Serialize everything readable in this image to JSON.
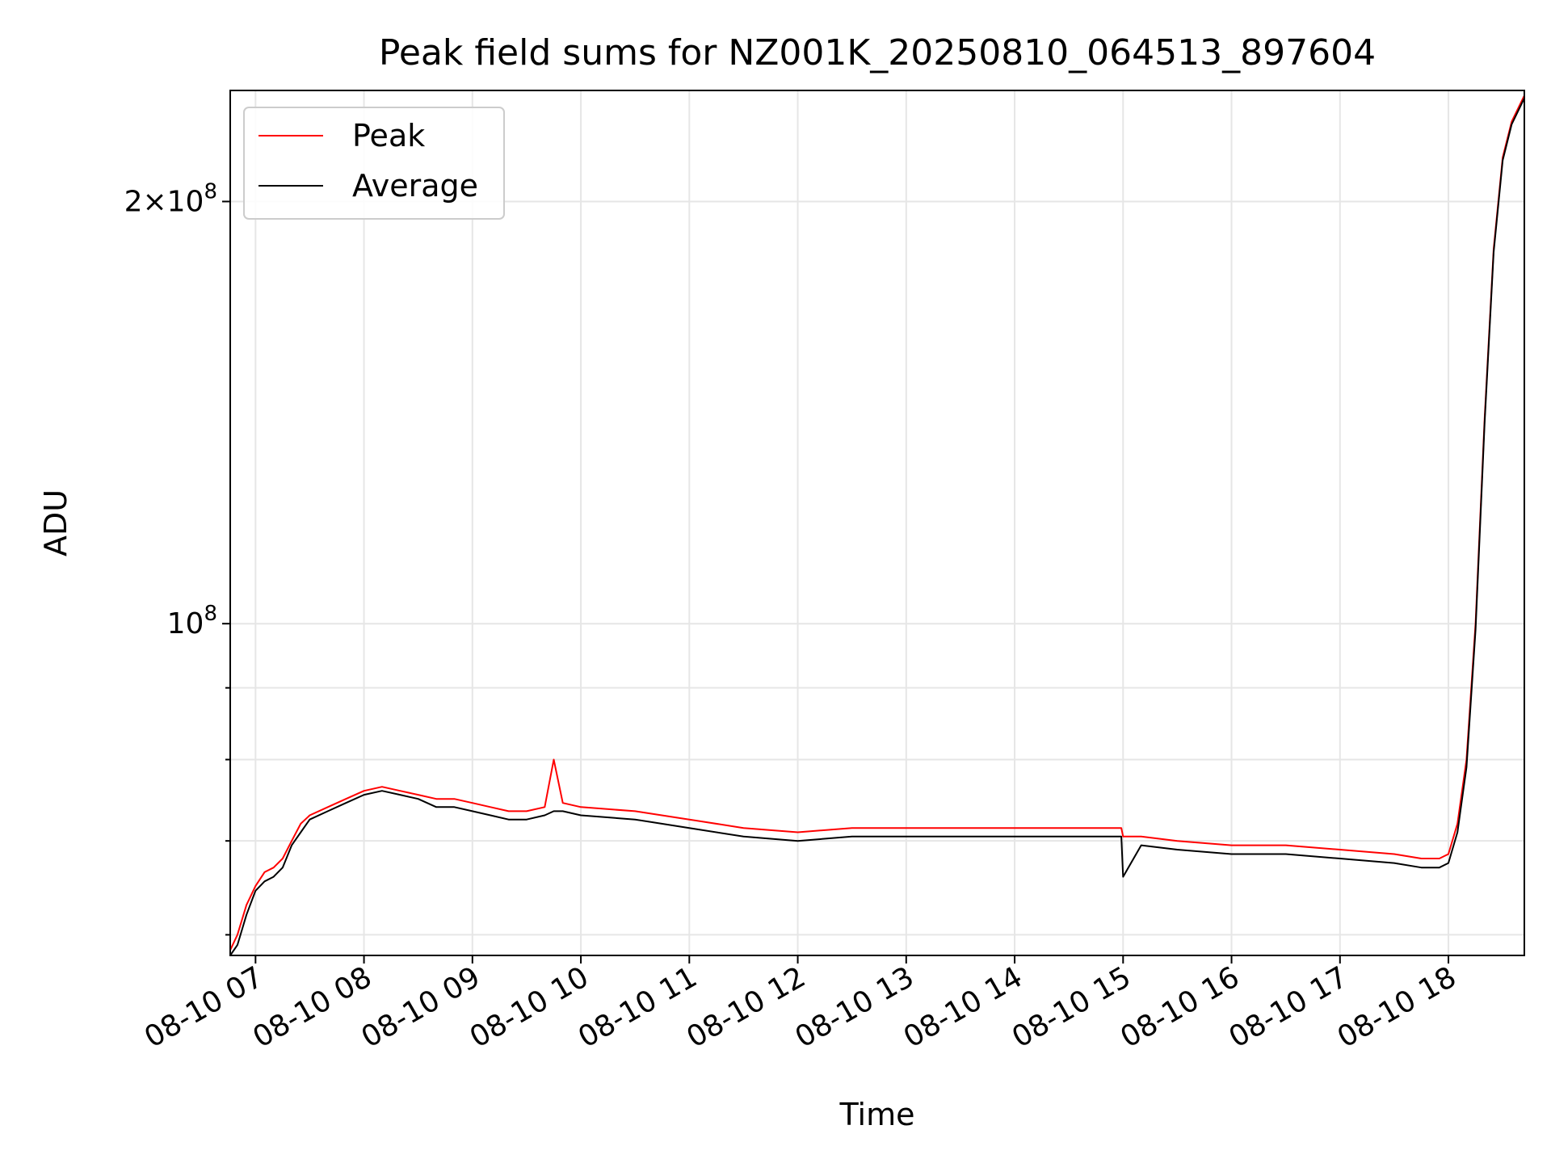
{
  "chart_data": {
    "type": "line",
    "title": "Peak field sums for NZ001K_20250810_064513_897604",
    "xlabel": "Time",
    "ylabel": "ADU",
    "y_scale": "log",
    "xlim": [
      "08-10 06:46",
      "08-10 18:42"
    ],
    "ylim": [
      58000000,
      240000000
    ],
    "grid": true,
    "legend_position": "top-left",
    "x_ticks": [
      "08-10 07",
      "08-10 08",
      "08-10 09",
      "08-10 10",
      "08-10 11",
      "08-10 12",
      "08-10 13",
      "08-10 14",
      "08-10 15",
      "08-10 16",
      "08-10 17",
      "08-10 18"
    ],
    "y_ticks": [
      {
        "value": 100000000,
        "label": "10^8"
      },
      {
        "value": 200000000,
        "label": "2×10^8"
      }
    ],
    "x": [
      "06:46",
      "06:50",
      "06:55",
      "07:00",
      "07:05",
      "07:10",
      "07:15",
      "07:20",
      "07:25",
      "07:30",
      "07:40",
      "07:50",
      "08:00",
      "08:10",
      "08:20",
      "08:30",
      "08:40",
      "08:50",
      "09:00",
      "09:10",
      "09:20",
      "09:30",
      "09:40",
      "09:45",
      "09:50",
      "10:00",
      "10:30",
      "11:00",
      "11:30",
      "12:00",
      "12:30",
      "13:00",
      "13:30",
      "14:00",
      "14:30",
      "14:59",
      "15:00",
      "15:10",
      "15:30",
      "16:00",
      "16:30",
      "17:00",
      "17:30",
      "17:45",
      "17:55",
      "18:00",
      "18:05",
      "18:10",
      "18:15",
      "18:20",
      "18:25",
      "18:30",
      "18:35",
      "18:42"
    ],
    "series": [
      {
        "name": "Peak",
        "color": "#ff0000",
        "values": [
          58.5,
          60,
          63,
          65,
          66.5,
          67,
          68,
          70,
          72,
          73,
          74,
          75,
          76,
          76.5,
          76,
          75.5,
          75,
          75,
          74.5,
          74,
          73.5,
          73.5,
          74,
          80,
          74.5,
          74,
          73.5,
          72.5,
          71.5,
          71,
          71.5,
          71.5,
          71.5,
          71.5,
          71.5,
          71.5,
          70.5,
          70.5,
          70,
          69.5,
          69.5,
          69,
          68.5,
          68,
          68,
          68.5,
          72,
          80,
          100,
          140,
          185,
          215,
          228,
          238
        ]
      },
      {
        "name": "Average",
        "color": "#000000",
        "values": [
          58,
          59,
          62,
          64.5,
          65.5,
          66,
          67,
          69.5,
          71,
          72.5,
          73.5,
          74.5,
          75.5,
          76,
          75.5,
          75,
          74,
          74,
          73.5,
          73,
          72.5,
          72.5,
          73,
          73.5,
          73.5,
          73,
          72.5,
          71.5,
          70.5,
          70,
          70.5,
          70.5,
          70.5,
          70.5,
          70.5,
          70.5,
          66,
          69.5,
          69,
          68.5,
          68.5,
          68,
          67.5,
          67,
          67,
          67.5,
          71,
          79,
          99,
          139,
          184,
          214,
          227,
          237
        ]
      }
    ]
  }
}
